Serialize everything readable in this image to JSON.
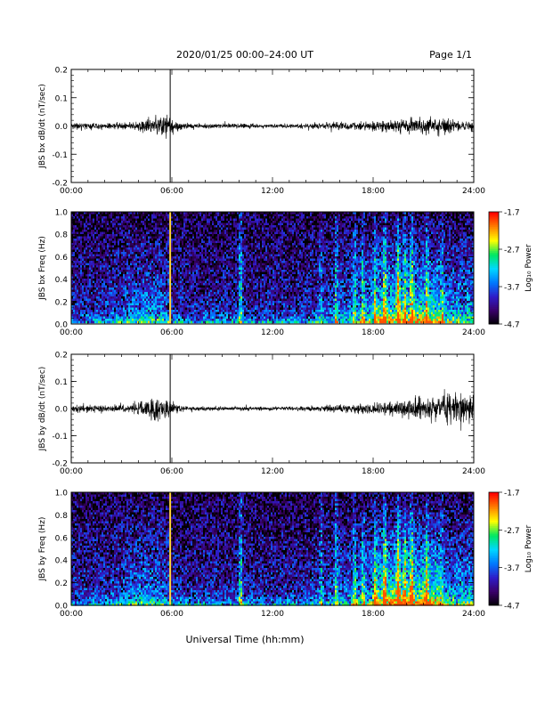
{
  "header": {
    "title": "2020/01/25  00:00–24:00 UT",
    "page": "Page 1/1"
  },
  "footer": {
    "xlabel": "Universal Time (hh:mm)"
  },
  "colors": {
    "trace": "#000000",
    "spike": "#ffd23a",
    "colormap": [
      "#000000",
      "#3a0068",
      "#2e1cc8",
      "#0078ff",
      "#00d8ff",
      "#00e860",
      "#ffff00",
      "#ff8000",
      "#ff0000"
    ]
  },
  "chart_data": [
    {
      "type": "line",
      "ylabel": "JBS bx dB/dt (nT/sec)",
      "xlim": [
        0,
        24
      ],
      "ylim": [
        -0.2,
        0.2
      ],
      "xticks": [
        "00:00",
        "06:00",
        "12:00",
        "18:00",
        "24:00"
      ],
      "yticks": [
        "0.2",
        "0.1",
        "0.0",
        "-0.1",
        "-0.2"
      ],
      "yvals": [
        0.2,
        0.1,
        0.0,
        -0.1,
        -0.2
      ],
      "spike_time": 5.9,
      "envelope": {
        "x": [
          0,
          1,
          2,
          3,
          4,
          4.5,
          5,
          5.5,
          5.9,
          6.2,
          6.6,
          7,
          8,
          9,
          10,
          11,
          12,
          13,
          14,
          15,
          16,
          17,
          18,
          19,
          20,
          21,
          22,
          23,
          24
        ],
        "amp": [
          0.01,
          0.012,
          0.01,
          0.01,
          0.014,
          0.02,
          0.035,
          0.04,
          0.03,
          0.018,
          0.012,
          0.01,
          0.008,
          0.008,
          0.008,
          0.007,
          0.006,
          0.006,
          0.008,
          0.01,
          0.012,
          0.013,
          0.016,
          0.018,
          0.022,
          0.028,
          0.024,
          0.018,
          0.016
        ]
      }
    },
    {
      "type": "heatmap",
      "ylabel": "JBS bx Freq (Hz)",
      "xlim": [
        0,
        24
      ],
      "ylim": [
        0,
        1.0
      ],
      "xticks": [
        "00:00",
        "06:00",
        "12:00",
        "18:00",
        "24:00"
      ],
      "yticks": [
        "1.0",
        "0.8",
        "0.6",
        "0.4",
        "0.2",
        "0.0"
      ],
      "yvals": [
        1.0,
        0.8,
        0.6,
        0.4,
        0.2,
        0.0
      ],
      "colorbar": {
        "label": "Log₁₀ Power",
        "range": [
          -4.7,
          -1.7
        ],
        "ticks": [
          "-1.7",
          "-2.7",
          "-3.7",
          "-4.7"
        ],
        "tickvals": [
          -1.7,
          -2.7,
          -3.7,
          -4.7
        ]
      },
      "spike_time": 5.9
    },
    {
      "type": "line",
      "ylabel": "JBS by dB/dt (nT/sec)",
      "xlim": [
        0,
        24
      ],
      "ylim": [
        -0.2,
        0.2
      ],
      "xticks": [
        "00:00",
        "06:00",
        "12:00",
        "18:00",
        "24:00"
      ],
      "yticks": [
        "0.2",
        "0.1",
        "0.0",
        "-0.1",
        "-0.2"
      ],
      "yvals": [
        0.2,
        0.1,
        0.0,
        -0.1,
        -0.2
      ],
      "spike_time": 5.9,
      "envelope": {
        "x": [
          0,
          1,
          2,
          3,
          4,
          4.5,
          5,
          5.5,
          5.9,
          6.2,
          6.6,
          7,
          8,
          9,
          10,
          11,
          12,
          13,
          14,
          15,
          16,
          17,
          18,
          19,
          20,
          21,
          22,
          23,
          24
        ],
        "amp": [
          0.012,
          0.014,
          0.012,
          0.013,
          0.02,
          0.03,
          0.045,
          0.04,
          0.03,
          0.015,
          0.01,
          0.007,
          0.006,
          0.006,
          0.006,
          0.006,
          0.006,
          0.007,
          0.008,
          0.01,
          0.012,
          0.014,
          0.018,
          0.022,
          0.03,
          0.038,
          0.045,
          0.055,
          0.05
        ]
      }
    },
    {
      "type": "heatmap",
      "ylabel": "JBS by Freq (Hz)",
      "xlim": [
        0,
        24
      ],
      "ylim": [
        0,
        1.0
      ],
      "xticks": [
        "00:00",
        "06:00",
        "12:00",
        "18:00",
        "24:00"
      ],
      "yticks": [
        "1.0",
        "0.8",
        "0.6",
        "0.4",
        "0.2",
        "0.0"
      ],
      "yvals": [
        1.0,
        0.8,
        0.6,
        0.4,
        0.2,
        0.0
      ],
      "colorbar": {
        "label": "Log₁₀ Power",
        "range": [
          -4.7,
          -1.7
        ],
        "ticks": [
          "-1.7",
          "-2.7",
          "-3.7",
          "-4.7"
        ],
        "tickvals": [
          -1.7,
          -2.7,
          -3.7,
          -4.7
        ]
      },
      "spike_time": 5.9
    }
  ]
}
